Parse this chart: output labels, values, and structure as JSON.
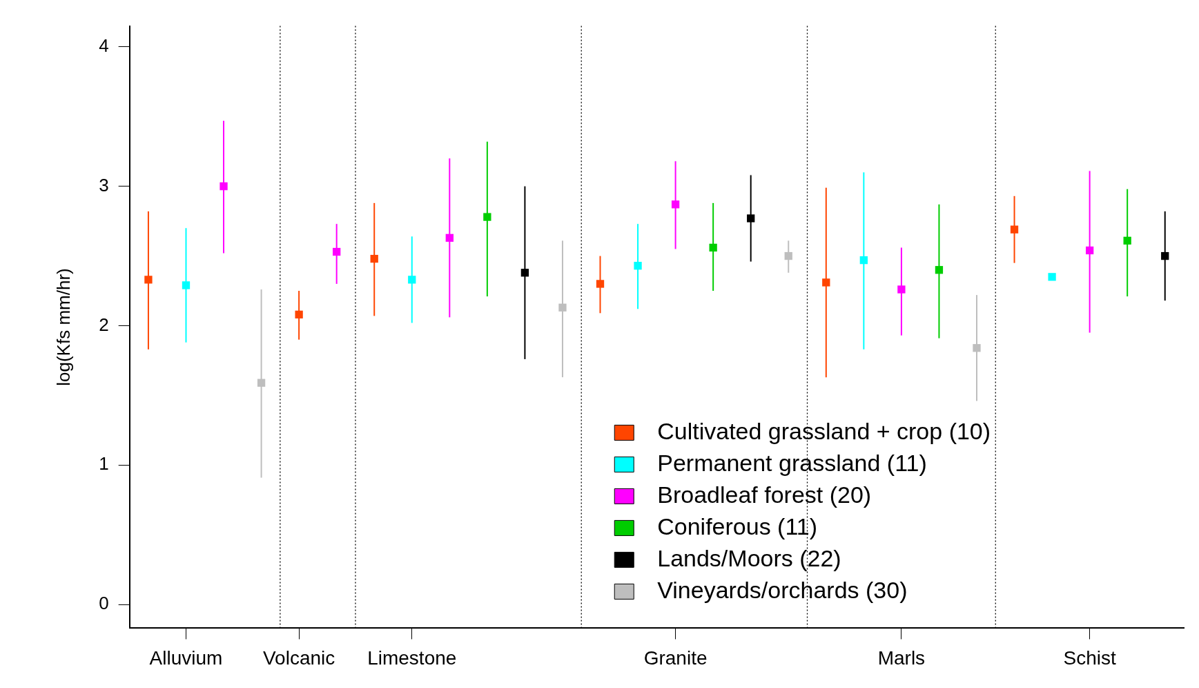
{
  "chart_data": {
    "type": "scatter",
    "ylabel": "log(Kfs mm/hr)",
    "categories": [
      null,
      "Alluvium",
      null,
      null,
      "Volcanic",
      null,
      null,
      "Limestone",
      null,
      null,
      null,
      null,
      null,
      null,
      "Granite",
      null,
      null,
      null,
      null,
      null,
      "Marls",
      null,
      null,
      null,
      null,
      "Schist",
      null,
      null
    ],
    "ylim": [
      -0.17,
      4.15
    ],
    "yticks": [
      0,
      1,
      2,
      3,
      4
    ],
    "grid": false,
    "legend": "bottom right",
    "marker": "square",
    "series": [
      {
        "name": "Cultivated grassland + crop (10)",
        "color": "#ff4500",
        "values": [
          2.33,
          null,
          null,
          null,
          2.08,
          null,
          2.48,
          null,
          null,
          null,
          null,
          null,
          2.3,
          null,
          null,
          null,
          null,
          null,
          2.31,
          null,
          null,
          null,
          null,
          2.69,
          null,
          null,
          null,
          null
        ],
        "errors": [
          [
            1.83,
            2.82
          ],
          null,
          null,
          null,
          [
            1.9,
            2.25
          ],
          null,
          [
            2.07,
            2.88
          ],
          null,
          null,
          null,
          null,
          null,
          [
            2.09,
            2.5
          ],
          null,
          null,
          null,
          null,
          null,
          [
            1.63,
            2.99
          ],
          null,
          null,
          null,
          null,
          [
            2.45,
            2.93
          ],
          null,
          null,
          null,
          null
        ]
      },
      {
        "name": "Permanent grassland (11)",
        "color": "#00ffff",
        "values": [
          null,
          2.29,
          null,
          null,
          null,
          null,
          null,
          2.33,
          null,
          null,
          null,
          null,
          null,
          2.43,
          null,
          null,
          null,
          null,
          null,
          2.47,
          null,
          null,
          null,
          null,
          2.35,
          null,
          null,
          null
        ],
        "errors": [
          null,
          [
            1.88,
            2.7
          ],
          null,
          null,
          null,
          null,
          null,
          [
            2.02,
            2.64
          ],
          null,
          null,
          null,
          null,
          null,
          [
            2.12,
            2.73
          ],
          null,
          null,
          null,
          null,
          null,
          [
            1.83,
            3.1
          ],
          null,
          null,
          null,
          null,
          null,
          null,
          null,
          null
        ]
      },
      {
        "name": "Broadleaf forest (20)",
        "color": "#ff00ff",
        "values": [
          null,
          null,
          3.0,
          null,
          null,
          2.53,
          null,
          null,
          2.63,
          null,
          null,
          null,
          null,
          null,
          2.87,
          null,
          null,
          null,
          null,
          null,
          2.26,
          null,
          null,
          null,
          null,
          2.54,
          null,
          null
        ],
        "errors": [
          null,
          null,
          [
            2.52,
            3.47
          ],
          null,
          null,
          [
            2.3,
            2.73
          ],
          null,
          null,
          [
            2.06,
            3.2
          ],
          null,
          null,
          null,
          null,
          null,
          [
            2.55,
            3.18
          ],
          null,
          null,
          null,
          null,
          null,
          [
            1.93,
            2.56
          ],
          null,
          null,
          null,
          null,
          [
            1.95,
            3.11
          ],
          null,
          null
        ]
      },
      {
        "name": "Coniferous (11)",
        "color": "#00cd00",
        "values": [
          null,
          null,
          null,
          null,
          null,
          null,
          null,
          null,
          null,
          2.78,
          null,
          null,
          null,
          null,
          null,
          2.56,
          null,
          null,
          null,
          null,
          null,
          2.4,
          null,
          null,
          null,
          null,
          2.61,
          null
        ],
        "errors": [
          null,
          null,
          null,
          null,
          null,
          null,
          null,
          null,
          null,
          [
            2.21,
            3.32
          ],
          null,
          null,
          null,
          null,
          null,
          [
            2.25,
            2.88
          ],
          null,
          null,
          null,
          null,
          null,
          [
            1.91,
            2.87
          ],
          null,
          null,
          null,
          null,
          [
            2.21,
            2.98
          ],
          null
        ]
      },
      {
        "name": "Lands/Moors (22)",
        "color": "#000000",
        "values": [
          null,
          null,
          null,
          null,
          null,
          null,
          null,
          null,
          null,
          null,
          2.38,
          null,
          null,
          null,
          null,
          null,
          2.77,
          null,
          null,
          null,
          null,
          null,
          null,
          null,
          null,
          null,
          null,
          2.5
        ],
        "errors": [
          null,
          null,
          null,
          null,
          null,
          null,
          null,
          null,
          null,
          null,
          [
            1.76,
            3.0
          ],
          null,
          null,
          null,
          null,
          null,
          [
            2.46,
            3.08
          ],
          null,
          null,
          null,
          null,
          null,
          null,
          null,
          null,
          null,
          null,
          [
            2.18,
            2.82
          ]
        ]
      },
      {
        "name": "Vineyards/orchards (30)",
        "color": "#bebebe",
        "values": [
          null,
          null,
          null,
          1.59,
          null,
          null,
          null,
          null,
          null,
          null,
          null,
          2.13,
          null,
          null,
          null,
          null,
          null,
          2.5,
          null,
          null,
          null,
          null,
          1.84,
          null,
          null,
          null,
          null,
          null
        ],
        "errors": [
          null,
          null,
          null,
          [
            0.91,
            2.26
          ],
          null,
          null,
          null,
          null,
          null,
          null,
          null,
          [
            1.63,
            2.61
          ],
          null,
          null,
          null,
          null,
          null,
          [
            2.38,
            2.61
          ],
          null,
          null,
          null,
          null,
          [
            1.46,
            2.22
          ],
          null,
          null,
          null,
          null,
          null
        ]
      }
    ]
  }
}
